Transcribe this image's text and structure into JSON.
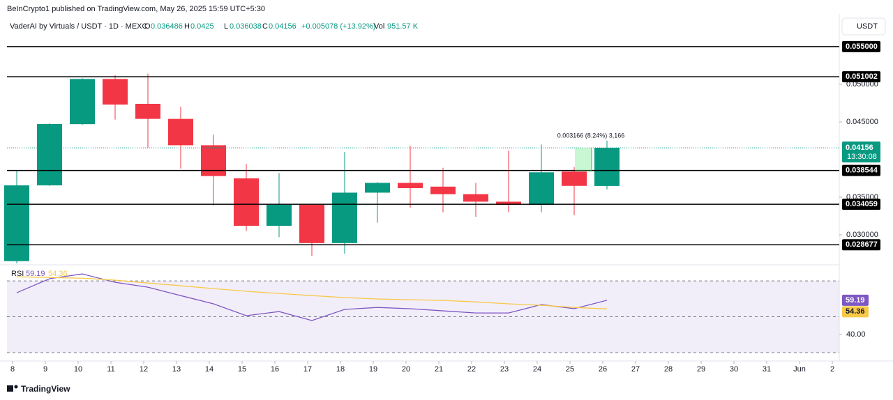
{
  "header": {
    "publisher": "BeInCrypto1 published on TradingView.com, May 26, 2025 15:59 UTC+5:30",
    "symbol": "VaderAI by Virtuals / USDT · 1D · MEXC",
    "open_label": "O",
    "high_label": "H",
    "low_label": "L",
    "close_label": "C",
    "change": "+0.005078 (+13.92%)",
    "volume_label": "Vol",
    "volume": "951.57 K"
  },
  "currency_button": "USDT",
  "countdown": "13:30:08",
  "footer": "TradingView",
  "chart_data": [
    {
      "type": "candlestick",
      "categories": [
        "8",
        "9",
        "10",
        "11",
        "12",
        "13",
        "14",
        "15",
        "16",
        "17",
        "18",
        "19",
        "20",
        "21",
        "22",
        "23",
        "24",
        "25",
        "26",
        "27",
        "28",
        "29",
        "30",
        "31",
        "Jun",
        "2"
      ],
      "open": [
        0.0265,
        0.03657,
        0.0447,
        0.0507,
        0.0474,
        0.0454,
        0.0419,
        0.0375,
        0.0312,
        0.034,
        0.0289,
        0.0356,
        0.0369,
        0.0364,
        0.0354,
        0.0344,
        0.034,
        0.0384,
        0.036486,
        null,
        null,
        null,
        null,
        null,
        null,
        null
      ],
      "high": [
        0.03852,
        0.0448,
        0.0508,
        0.0512,
        0.0514,
        0.047,
        0.0433,
        0.0394,
        0.0382,
        0.034,
        0.041,
        0.037,
        0.0418,
        0.0389,
        0.0369,
        0.0412,
        0.042,
        0.039,
        0.0425,
        null,
        null,
        null,
        null,
        null,
        null,
        null
      ],
      "low": [
        0.0262,
        0.0365,
        0.0446,
        0.0453,
        0.0416,
        0.0388,
        0.0339,
        0.0305,
        0.0297,
        0.0272,
        0.0275,
        0.0316,
        0.0336,
        0.033,
        0.0324,
        0.033,
        0.033,
        0.0326,
        0.036038,
        null,
        null,
        null,
        null,
        null,
        null,
        null
      ],
      "close": [
        0.03657,
        0.04472,
        0.0507,
        0.0473,
        0.0454,
        0.0419,
        0.0378,
        0.0312,
        0.034,
        0.0289,
        0.0356,
        0.0369,
        0.0362,
        0.0354,
        0.0344,
        0.034,
        0.0383,
        0.0365,
        0.04156,
        null,
        null,
        null,
        null,
        null,
        null,
        null
      ],
      "up_color": "#089981",
      "down_color": "#f23645",
      "ylim": [
        0.0262,
        0.0586
      ],
      "yticks": [
        {
          "value": 0.03,
          "label": "0.030000"
        },
        {
          "value": 0.035,
          "label": "0.035000"
        },
        {
          "value": 0.045,
          "label": "0.045000"
        },
        {
          "value": 0.05,
          "label": "0.050000"
        }
      ],
      "grid": false,
      "levels": [
        {
          "value": 0.055,
          "label": "0.055000"
        },
        0.051002,
        0.038544,
        0.034059,
        0.028677
      ],
      "annotation": "0.003166 (8.24%) 3,166"
    },
    {
      "type": "line",
      "title": "RSI",
      "series": [
        {
          "color": "#7e57c2",
          "values": [
            63.4,
            71.2,
            73.9,
            69.2,
            66.5,
            61.8,
            57.2,
            50.6,
            52.9,
            47.9,
            54.1,
            55.2,
            54.5,
            53.3,
            52.1,
            52.1,
            56.8,
            54.5,
            59.19,
            null,
            null,
            null,
            null,
            null,
            null,
            null
          ]
        },
        {
          "color": "#f7c948",
          "values": [
            72.3,
            71.9,
            71.5,
            70.4,
            68.8,
            67.3,
            65.7,
            64.2,
            63.0,
            61.8,
            60.7,
            59.9,
            59.5,
            59.1,
            58.3,
            57.2,
            56.4,
            55.2,
            54.36,
            null,
            null,
            null,
            null,
            null,
            null,
            null
          ]
        }
      ],
      "ylim": [
        26.5,
        78.2
      ],
      "yticks": [
        {
          "value": 40,
          "label": "40.00"
        }
      ],
      "bands": [
        70,
        50,
        30
      ]
    }
  ]
}
